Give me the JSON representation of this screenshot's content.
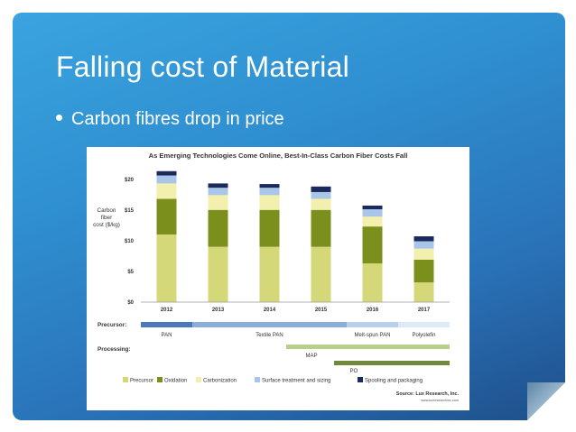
{
  "slide": {
    "title": "Falling cost of Material",
    "bullet": "Carbon fibres drop in price"
  },
  "chart_data": {
    "type": "bar",
    "stacked": true,
    "title": "As Emerging Technologies Come Online, Best-In-Class Carbon Fiber Costs Fall",
    "ylabel_lines": [
      "Carbon",
      "fiber",
      "cost ($/kg)"
    ],
    "categories": [
      "2012",
      "2013",
      "2014",
      "2015",
      "2016",
      "2017"
    ],
    "y_ticks": [
      "$0",
      "$5",
      "$10",
      "$15",
      "$20"
    ],
    "y_tick_values": [
      0,
      5,
      10,
      15,
      20
    ],
    "ylim": [
      0,
      22
    ],
    "series": [
      {
        "name": "Precursor",
        "color": "#d4d878",
        "values": [
          11,
          9,
          9,
          9,
          6.3,
          3.2
        ]
      },
      {
        "name": "Oxidation",
        "color": "#7b8f1c",
        "values": [
          5.8,
          6,
          6,
          6,
          6,
          3.7
        ]
      },
      {
        "name": "Carbonization",
        "color": "#f3f0ad",
        "values": [
          2.5,
          2.4,
          2.4,
          1.8,
          1.6,
          1.8
        ]
      },
      {
        "name": "Surface treatment and sizing",
        "color": "#a9c5e8",
        "values": [
          1.3,
          1.2,
          1.2,
          1.1,
          1.2,
          1.2
        ]
      },
      {
        "name": "Spooling and packaging",
        "color": "#1b2a5c",
        "values": [
          0.7,
          0.7,
          0.6,
          0.9,
          0.6,
          0.8
        ]
      }
    ],
    "precursor_row": {
      "label": "Precursor:",
      "names": [
        "PAN",
        "Textile PAN",
        "Melt-spun PAN",
        "Polyolefin"
      ],
      "colors": [
        "#4a78b8",
        "#8aaed8",
        "#b9d0ea",
        "#dde9f6"
      ]
    },
    "processing_row": {
      "label": "Processing:",
      "names": [
        "MAP",
        "PO"
      ],
      "colors": [
        "#b6d089",
        "#6e8a3a"
      ]
    },
    "source": "Source: Lux Research, Inc.",
    "source_url": "www.luxresearchinc.com"
  }
}
